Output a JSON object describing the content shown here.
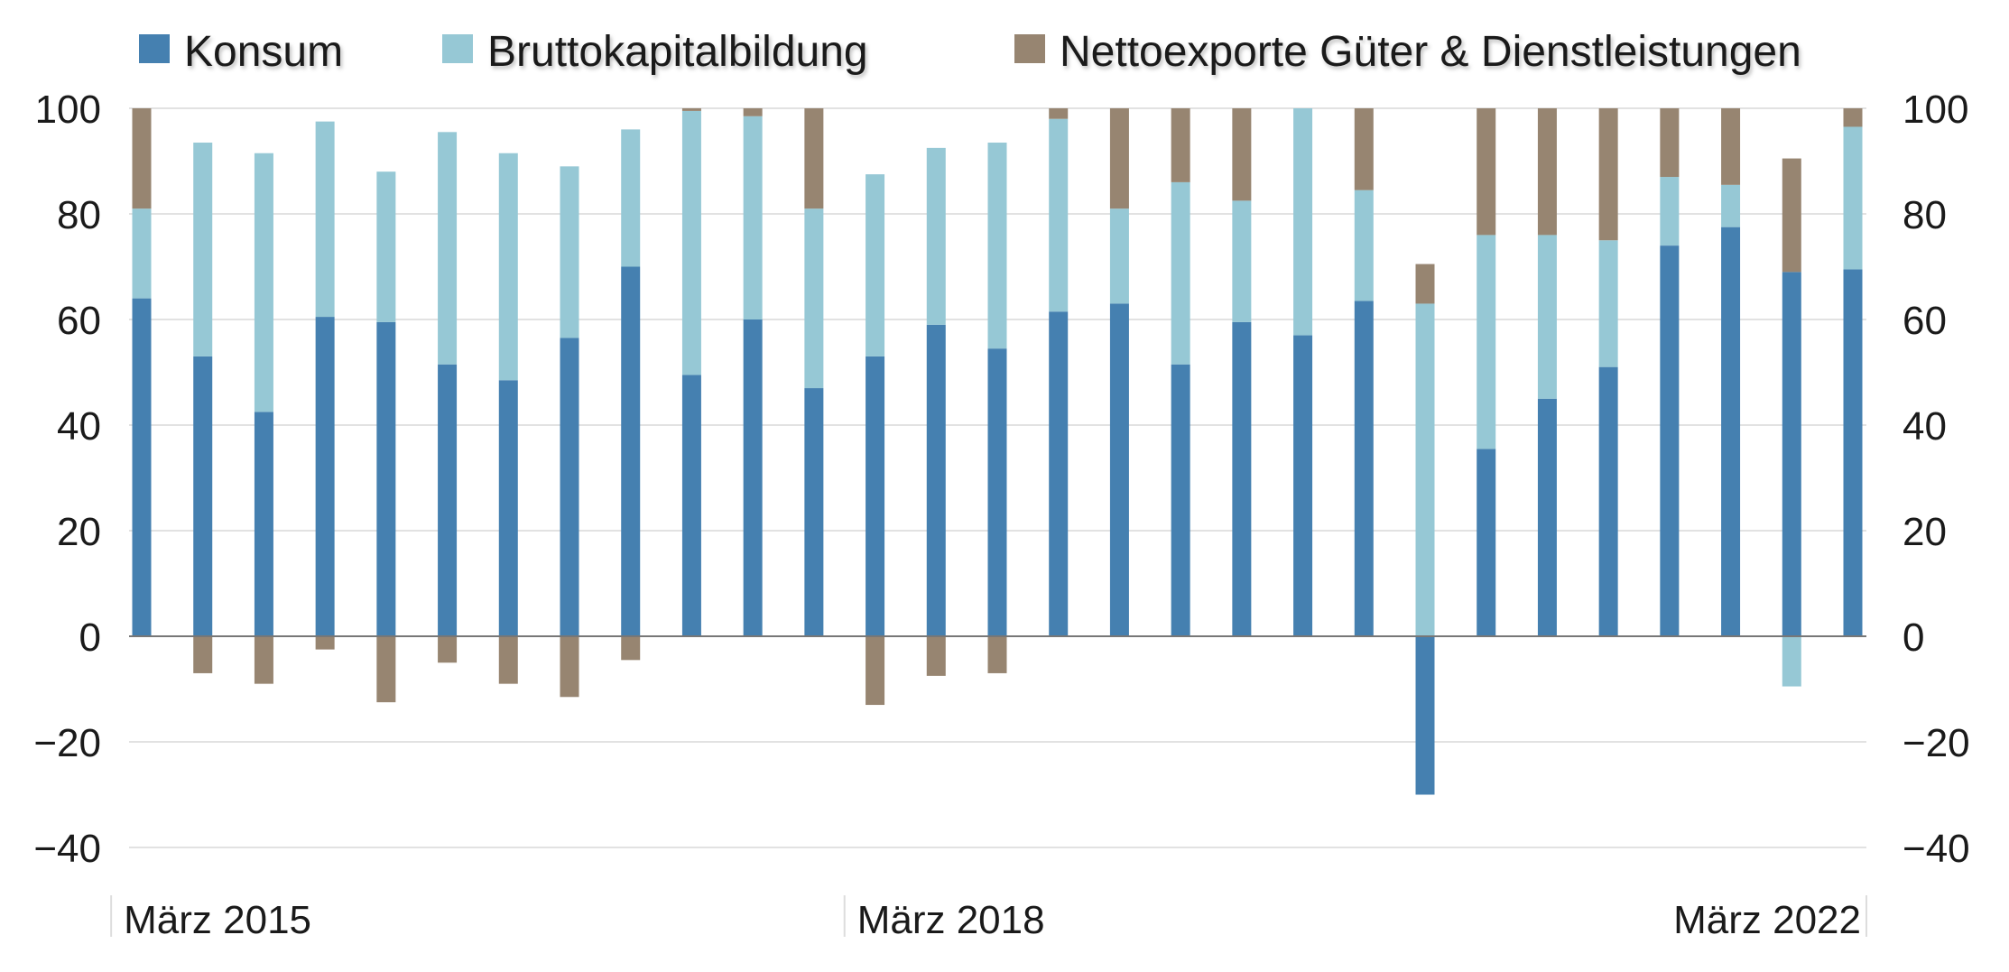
{
  "chart_data": {
    "type": "bar",
    "stacked": true,
    "title": "",
    "xlabel": "",
    "ylabel": "",
    "ylim": [
      -40,
      100
    ],
    "yticks": [
      100,
      80,
      60,
      40,
      20,
      0,
      -20,
      -40
    ],
    "ytick_labels": [
      "100",
      "80",
      "60",
      "40",
      "20",
      "0",
      "−20",
      "−40"
    ],
    "secondary_y_axis": true,
    "grid": true,
    "legend_position": "top",
    "x_tick_labels": [
      {
        "index": 0,
        "label": "März 2015"
      },
      {
        "index": 12,
        "label": "März 2018"
      },
      {
        "index": 28,
        "label": "März 2022"
      }
    ],
    "series": [
      {
        "name": "Konsum",
        "color": "#4580b0",
        "values": [
          64,
          53,
          42.5,
          60.5,
          59.5,
          51.5,
          48.5,
          56.5,
          70,
          49.5,
          60,
          47,
          53,
          59,
          54.5,
          61.5,
          63,
          51.5,
          59.5,
          57,
          63.5,
          -30,
          35.5,
          45,
          51,
          74,
          77.5,
          69,
          69.5
        ]
      },
      {
        "name": "Bruttokapitalbildung",
        "color": "#96c8d5",
        "values": [
          17,
          40.5,
          49,
          37,
          28.5,
          44,
          43,
          32.5,
          26,
          50,
          38.5,
          34,
          34.5,
          33.5,
          39,
          36.5,
          18,
          34.5,
          23,
          43,
          21,
          63,
          40.5,
          31,
          24,
          13,
          8,
          -9.5,
          27
        ]
      },
      {
        "name": "Nettoexporte Güter & Dienstleistungen",
        "color": "#978571",
        "values": [
          19,
          -7,
          -9,
          -2.5,
          -12.5,
          -5,
          -9,
          -11.5,
          -4.5,
          0.5,
          1.5,
          19,
          -13,
          -7.5,
          -7,
          2,
          19,
          14,
          17.5,
          0,
          15.5,
          7.5,
          24,
          24,
          25,
          13,
          14.5,
          21.5,
          3.5
        ]
      }
    ]
  }
}
